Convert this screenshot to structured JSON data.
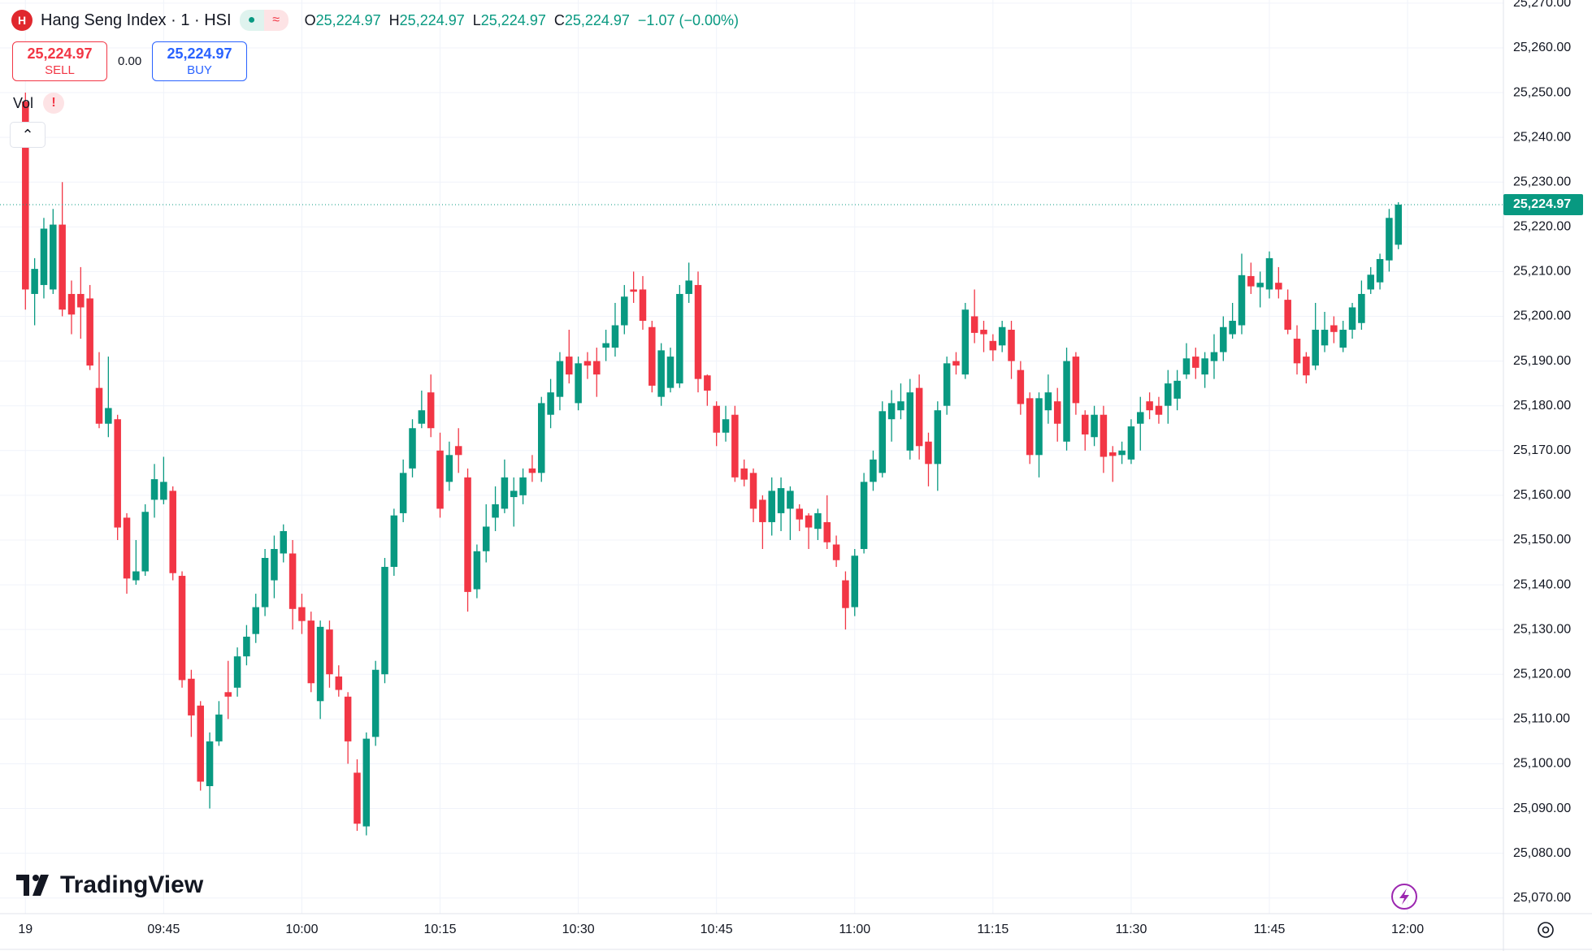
{
  "header": {
    "title": "Hang Seng Index · 1 · HSI",
    "ohlc": [
      {
        "label": "O",
        "value": "25,224.97"
      },
      {
        "label": "H",
        "value": "25,224.97"
      },
      {
        "label": "L",
        "value": "25,224.97"
      },
      {
        "label": "C",
        "value": "25,224.97"
      }
    ],
    "change": "−1.07 (−0.00%)"
  },
  "trade": {
    "sell_price": "25,224.97",
    "sell_label": "SELL",
    "spread": "0.00",
    "buy_price": "25,224.97",
    "buy_label": "BUY"
  },
  "indicator": "Vol",
  "logo": "TradingView",
  "chart_data": {
    "type": "candlestick",
    "up_color": "#089981",
    "down_color": "#f23645",
    "grid": true,
    "xlim": [
      -2.76,
      160.4
    ],
    "ylim": [
      25066.5,
      25270.7
    ],
    "xticks": [
      {
        "value": 0,
        "label": "19"
      },
      {
        "value": 15,
        "label": "09:45"
      },
      {
        "value": 30,
        "label": "10:00"
      },
      {
        "value": 45,
        "label": "10:15"
      },
      {
        "value": 60,
        "label": "10:30"
      },
      {
        "value": 75,
        "label": "10:45"
      },
      {
        "value": 90,
        "label": "11:00"
      },
      {
        "value": 105,
        "label": "11:15"
      },
      {
        "value": 120,
        "label": "11:30"
      },
      {
        "value": 135,
        "label": "11:45"
      },
      {
        "value": 150,
        "label": "12:00"
      }
    ],
    "yticks": [
      {
        "value": 25070,
        "label": "25,070.00"
      },
      {
        "value": 25080,
        "label": "25,080.00"
      },
      {
        "value": 25090,
        "label": "25,090.00"
      },
      {
        "value": 25100,
        "label": "25,100.00"
      },
      {
        "value": 25110,
        "label": "25,110.00"
      },
      {
        "value": 25120,
        "label": "25,120.00"
      },
      {
        "value": 25130,
        "label": "25,130.00"
      },
      {
        "value": 25140,
        "label": "25,140.00"
      },
      {
        "value": 25150,
        "label": "25,150.00"
      },
      {
        "value": 25160,
        "label": "25,160.00"
      },
      {
        "value": 25170,
        "label": "25,170.00"
      },
      {
        "value": 25180,
        "label": "25,180.00"
      },
      {
        "value": 25190,
        "label": "25,190.00"
      },
      {
        "value": 25200,
        "label": "25,200.00"
      },
      {
        "value": 25210,
        "label": "25,210.00"
      },
      {
        "value": 25220,
        "label": "25,220.00"
      },
      {
        "value": 25230,
        "label": "25,230.00"
      },
      {
        "value": 25240,
        "label": "25,240.00"
      },
      {
        "value": 25250,
        "label": "25,250.00"
      },
      {
        "value": 25260,
        "label": "25,260.00"
      },
      {
        "value": 25270,
        "label": "25,270.00"
      }
    ],
    "last_price": {
      "value": 25224.97,
      "label": "25,224.97"
    },
    "open": [
      25248,
      25205,
      25207,
      25206,
      25220.5,
      25205,
      25205,
      25204,
      25184,
      25176,
      25177,
      25155,
      25141,
      25143,
      25159,
      25159,
      25161,
      25142,
      25119,
      25113,
      25095,
      25105,
      25116,
      25117,
      25124,
      25129,
      25135,
      25141,
      25147,
      25147,
      25135,
      25132,
      25114,
      25130,
      25119.5,
      25115,
      25098,
      25086,
      25106,
      25120,
      25144,
      25156,
      25166,
      25176,
      25183,
      25170,
      25163,
      25171,
      25164,
      25139,
      25147.5,
      25155,
      25157,
      25159.6,
      25160,
      25166,
      25165,
      25178,
      25182,
      25191,
      25180.6,
      25190,
      25190,
      25193,
      25193,
      25198,
      25206,
      25206,
      25197.6,
      25182,
      25184,
      25185,
      25205,
      25207,
      25186.8,
      25180,
      25174,
      25178,
      25166,
      25165,
      25159,
      25154,
      25156,
      25157,
      25157,
      25155.5,
      25152.5,
      25154,
      25149,
      25141,
      25135,
      25148,
      25163,
      25165,
      25177,
      25179,
      25170,
      25184,
      25172,
      25167,
      25180,
      25190,
      25187,
      25200,
      25197,
      25194.5,
      25193.5,
      25197,
      25188,
      25181.7,
      25169,
      25179,
      25181,
      25172,
      25191,
      25178,
      25173,
      25178,
      25169.6,
      25169,
      25168,
      25176,
      25181,
      25180,
      25180,
      25181.6,
      25187,
      25191,
      25187,
      25190,
      25192,
      25196,
      25198,
      25209,
      25206.5,
      25206,
      25207.5,
      25203.7,
      25195,
      25191,
      25189,
      25193.5,
      25198,
      25193,
      25197,
      25198.5,
      25206,
      25207.6,
      25212.5,
      25216
    ],
    "high": [
      25250,
      25213,
      25222,
      25224,
      25230,
      25208,
      25211,
      25207,
      25192,
      25191,
      25178,
      25156,
      25150,
      25158,
      25167,
      25168.6,
      25162,
      25143,
      25121,
      25114,
      25107,
      25114,
      25123,
      25126,
      25131,
      25138,
      25148,
      25151,
      25153.5,
      25150,
      25138,
      25134,
      25132,
      25132,
      25122,
      25116,
      25101,
      25107,
      25123,
      25146,
      25157,
      25168,
      25177,
      25183.4,
      25187,
      25174,
      25172,
      25175,
      25166,
      25149,
      25158,
      25162,
      25168,
      25164,
      25166,
      25169,
      25182,
      25186,
      25192,
      25197,
      25191,
      25192,
      25193,
      25197,
      25203,
      25207,
      25210,
      25209,
      25199,
      25194,
      25193,
      25207,
      25212,
      25210,
      25187,
      25181,
      25180,
      25180,
      25168,
      25166,
      25160,
      25164,
      25164,
      25162,
      25158,
      25156,
      25157,
      25160,
      25151,
      25143,
      25148,
      25165,
      25170,
      25181,
      25183.5,
      25185,
      25186,
      25187,
      25174,
      25181,
      25191,
      25192,
      25203,
      25206,
      25199,
      25196,
      25199,
      25199,
      25190,
      25183,
      25183,
      25187,
      25184,
      25193,
      25192,
      25179,
      25180,
      25180,
      25171,
      25172,
      25177,
      25182,
      25183,
      25182,
      25188,
      25188,
      25194,
      25193,
      25192,
      25196,
      25200,
      25203,
      25214,
      25212,
      25210,
      25214.5,
      25211,
      25206,
      25198,
      25192,
      25203,
      25201,
      25200,
      25199,
      25203,
      25208,
      25211,
      25214,
      25224,
      25225.5
    ],
    "low": [
      25201.5,
      25198,
      25204,
      25205,
      25200,
      25196,
      25195,
      25188,
      25175,
      25173,
      25150,
      25138,
      25140,
      25142,
      25155,
      25158,
      25141,
      25117,
      25106,
      25094,
      25090,
      25104,
      25110,
      25115,
      25122,
      25127,
      25133,
      25137,
      25145,
      25130,
      25129,
      25116,
      25110,
      25117,
      25115,
      25100,
      25085,
      25084,
      25104,
      25118,
      25142,
      25154,
      25164,
      25175,
      25173,
      25155,
      25161,
      25165,
      25134,
      25137,
      25145,
      25152,
      25156,
      25153,
      25158,
      25163,
      25163,
      25175,
      25179,
      25185,
      25179,
      25186,
      25182,
      25190,
      25191,
      25196,
      25203,
      25197,
      25183,
      25180,
      25183,
      25184,
      25203,
      25183,
      25180,
      25171,
      25172,
      25163,
      25162,
      25154,
      25148,
      25151,
      25152,
      25150,
      25152,
      25148,
      25150,
      25148,
      25144,
      25130,
      25133,
      25147,
      25161,
      25164,
      25172,
      25177,
      25168,
      25168,
      25162,
      25161,
      25178,
      25187,
      25186,
      25194,
      25192,
      25190,
      25192,
      25186,
      25178,
      25167,
      25164,
      25176,
      25172,
      25170,
      25178,
      25170,
      25171,
      25165,
      25163,
      25167,
      25167,
      25170,
      25177,
      25176,
      25176,
      25179,
      25186,
      25186,
      25184,
      25186,
      25190,
      25195,
      25196,
      25205,
      25202,
      25204,
      25204,
      25196,
      25187,
      25185,
      25188,
      25192,
      25194,
      25192,
      25195,
      25197,
      25205,
      25206,
      25210,
      25215
    ],
    "close": [
      25206,
      25210.6,
      25219.6,
      25220.5,
      25201.5,
      25200.4,
      25202,
      25189,
      25176,
      25179.5,
      25152.8,
      25141.4,
      25143,
      25156.3,
      25163.6,
      25163,
      25142.6,
      25118.7,
      25110.8,
      25096,
      25105,
      25111,
      25115,
      25124,
      25128.4,
      25135,
      25146,
      25148,
      25152,
      25134.6,
      25131.9,
      25118,
      25130.6,
      25120,
      25116.5,
      25105,
      25086.6,
      25105.6,
      25121,
      25144,
      25155.5,
      25165,
      25175,
      25179,
      25175,
      25157,
      25169,
      25169,
      25138.4,
      25147.5,
      25153,
      25158,
      25164,
      25161,
      25164,
      25165,
      25180.6,
      25183,
      25190,
      25187,
      25189.5,
      25189,
      25187,
      25194,
      25198,
      25204.4,
      25205.5,
      25199,
      25184.5,
      25192.4,
      25191,
      25205,
      25208,
      25186,
      25183.4,
      25174,
      25177,
      25164,
      25163.5,
      25157,
      25154,
      25161,
      25161.6,
      25161,
      25154.6,
      25152.8,
      25156,
      25149.5,
      25145.5,
      25134.8,
      25146.5,
      25163,
      25168,
      25178.8,
      25180.6,
      25181,
      25183,
      25171,
      25167,
      25179,
      25189.5,
      25189,
      25201.5,
      25196.3,
      25196,
      25192.4,
      25197.6,
      25190,
      25180.4,
      25169,
      25181.7,
      25183,
      25176,
      25190,
      25180.6,
      25173.6,
      25178,
      25168.6,
      25168.8,
      25170,
      25175.4,
      25178.6,
      25179,
      25178,
      25185,
      25185.6,
      25190.6,
      25188.5,
      25190.6,
      25192,
      25197.6,
      25199,
      25209.2,
      25206.7,
      25207.5,
      25213,
      25206,
      25197,
      25189.5,
      25186.8,
      25197,
      25197,
      25196.5,
      25197,
      25202,
      25205,
      25209.3,
      25212.8,
      25222,
      25224.97
    ]
  }
}
